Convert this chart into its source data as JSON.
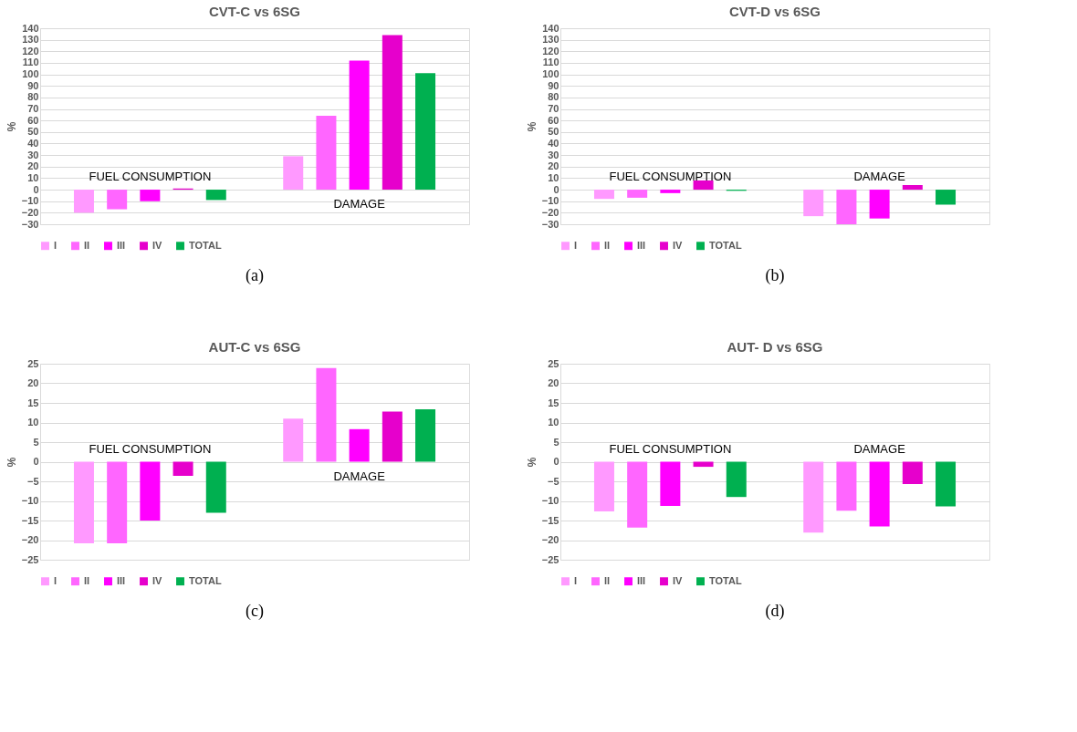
{
  "chart_data": [
    {
      "type": "bar",
      "title": "CVT-C vs 6SG",
      "ylabel": "%",
      "categories": [
        "FUEL CONSUMPTION",
        "DAMAGE"
      ],
      "series": [
        {
          "name": "I",
          "color": "#ff99ff",
          "values": [
            -20,
            29
          ]
        },
        {
          "name": "II",
          "color": "#ff66ff",
          "values": [
            -17,
            64
          ]
        },
        {
          "name": "III",
          "color": "#ff00ff",
          "values": [
            -10,
            112
          ]
        },
        {
          "name": "IV",
          "color": "#e600cc",
          "values": [
            1,
            134
          ]
        },
        {
          "name": "TOTAL",
          "color": "#00b050",
          "values": [
            -9,
            101
          ]
        }
      ],
      "ylim": [
        -30,
        140
      ],
      "yticks": [
        -30,
        -20,
        -10,
        0,
        10,
        20,
        30,
        40,
        50,
        60,
        70,
        80,
        90,
        100,
        110,
        120,
        130,
        140
      ],
      "grid": "y",
      "legend": "bottom",
      "annotations": [
        "(a)"
      ]
    },
    {
      "type": "bar",
      "title": "CVT-D vs 6SG",
      "ylabel": "%",
      "categories": [
        "FUEL CONSUMPTION",
        "DAMAGE"
      ],
      "series": [
        {
          "name": "I",
          "color": "#ff99ff",
          "values": [
            -8,
            -23
          ]
        },
        {
          "name": "II",
          "color": "#ff66ff",
          "values": [
            -7,
            -30
          ]
        },
        {
          "name": "III",
          "color": "#ff00ff",
          "values": [
            -3,
            -25
          ]
        },
        {
          "name": "IV",
          "color": "#e600cc",
          "values": [
            8,
            4
          ]
        },
        {
          "name": "TOTAL",
          "color": "#00b050",
          "values": [
            -1,
            -13
          ]
        }
      ],
      "ylim": [
        -30,
        140
      ],
      "yticks": [
        -30,
        -20,
        -10,
        0,
        10,
        20,
        30,
        40,
        50,
        60,
        70,
        80,
        90,
        100,
        110,
        120,
        130,
        140
      ],
      "grid": "y",
      "legend": "bottom",
      "annotations": [
        "(b)"
      ]
    },
    {
      "type": "bar",
      "title": "AUT-C vs 6SG",
      "ylabel": "%",
      "categories": [
        "FUEL CONSUMPTION",
        "DAMAGE"
      ],
      "series": [
        {
          "name": "I",
          "color": "#ff99ff",
          "values": [
            -20.8,
            11
          ]
        },
        {
          "name": "II",
          "color": "#ff66ff",
          "values": [
            -20.8,
            23.9
          ]
        },
        {
          "name": "III",
          "color": "#ff00ff",
          "values": [
            -15,
            8.3
          ]
        },
        {
          "name": "IV",
          "color": "#e600cc",
          "values": [
            -3.6,
            12.8
          ]
        },
        {
          "name": "TOTAL",
          "color": "#00b050",
          "values": [
            -13,
            13.4
          ]
        }
      ],
      "ylim": [
        -25,
        25
      ],
      "yticks": [
        -25,
        -20,
        -15,
        -10,
        -5,
        0,
        5,
        10,
        15,
        20,
        25
      ],
      "grid": "y",
      "legend": "bottom",
      "annotations": [
        "(c)"
      ]
    },
    {
      "type": "bar",
      "title": "AUT- D vs 6SG",
      "ylabel": "%",
      "categories": [
        "FUEL CONSUMPTION",
        "DAMAGE"
      ],
      "series": [
        {
          "name": "I",
          "color": "#ff99ff",
          "values": [
            -12.7,
            -18.1
          ]
        },
        {
          "name": "II",
          "color": "#ff66ff",
          "values": [
            -16.8,
            -12.5
          ]
        },
        {
          "name": "III",
          "color": "#ff00ff",
          "values": [
            -11.3,
            -16.5
          ]
        },
        {
          "name": "IV",
          "color": "#e600cc",
          "values": [
            -1.3,
            -5.7
          ]
        },
        {
          "name": "TOTAL",
          "color": "#00b050",
          "values": [
            -9,
            -11.4
          ]
        }
      ],
      "ylim": [
        -25,
        25
      ],
      "yticks": [
        -25,
        -20,
        -15,
        -10,
        -5,
        0,
        5,
        10,
        15,
        20,
        25
      ],
      "grid": "y",
      "legend": "bottom",
      "annotations": [
        "(d)"
      ]
    }
  ]
}
